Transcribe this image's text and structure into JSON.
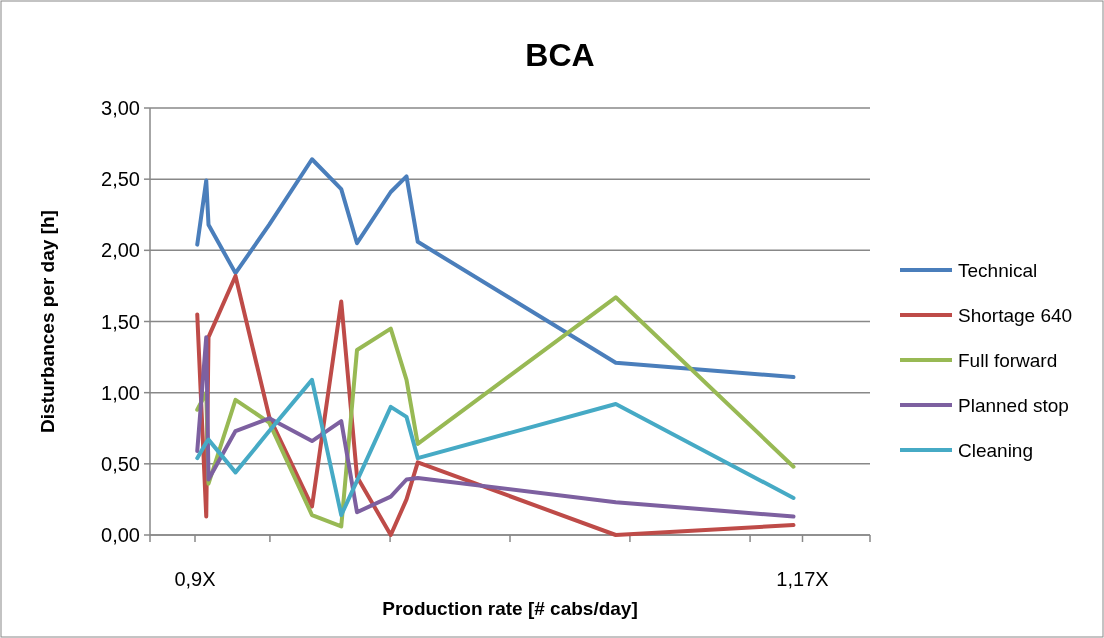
{
  "chart_data": {
    "type": "line",
    "title": "BCA",
    "xlabel": "Production rate [# cabs/day]",
    "ylabel": "Disturbances per day [h]",
    "x": [
      0.901,
      0.905,
      0.906,
      0.918,
      0.933,
      0.952,
      0.965,
      0.972,
      0.987,
      0.994,
      0.999,
      1.087,
      1.166
    ],
    "series": [
      {
        "name": "Technical",
        "color": "#4a7ebb",
        "values": [
          2.04,
          2.49,
          2.18,
          1.84,
          2.18,
          2.64,
          2.43,
          2.05,
          2.41,
          2.52,
          2.06,
          1.21,
          1.11
        ]
      },
      {
        "name": "Shortage 640",
        "color": "#be4b48",
        "values": [
          1.55,
          0.13,
          1.39,
          1.82,
          0.83,
          0.2,
          1.64,
          0.41,
          0,
          0.25,
          0.51,
          0,
          0.07
        ]
      },
      {
        "name": "Full forward",
        "color": "#98b954",
        "values": [
          0.88,
          1.0,
          0.36,
          0.95,
          0.79,
          0.14,
          0.06,
          1.3,
          1.45,
          1.09,
          0.64,
          1.67,
          0.48
        ]
      },
      {
        "name": "Planned stop",
        "color": "#7d60a0",
        "values": [
          0.59,
          1.39,
          0.39,
          0.73,
          0.82,
          0.66,
          0.8,
          0.16,
          0.27,
          0.39,
          0.4,
          0.23,
          0.13
        ]
      },
      {
        "name": "Cleaning",
        "color": "#46aac5",
        "values": [
          0.54,
          0.65,
          0.67,
          0.44,
          0.73,
          1.09,
          0.14,
          0.38,
          0.9,
          0.83,
          0.54,
          0.92,
          0.26
        ]
      }
    ],
    "xlim": [
      0.88,
      1.2
    ],
    "xticks": [
      {
        "value": 0.88,
        "label": null
      },
      {
        "value": 0.9,
        "label": "0,9X"
      },
      {
        "value": 0.9333,
        "label": null
      },
      {
        "value": 0.9867,
        "label": null
      },
      {
        "value": 1.04,
        "label": null
      },
      {
        "value": 1.0933,
        "label": null
      },
      {
        "value": 1.1467,
        "label": null
      },
      {
        "value": 1.17,
        "label": "1,17X"
      },
      {
        "value": 1.2,
        "label": null
      }
    ],
    "ylim": [
      0,
      3
    ],
    "yticks": [
      {
        "value": 0,
        "label": "0,00"
      },
      {
        "value": 0.5,
        "label": "0,50"
      },
      {
        "value": 1,
        "label": "1,00"
      },
      {
        "value": 1.5,
        "label": "1,50"
      },
      {
        "value": 2,
        "label": "2,00"
      },
      {
        "value": 2.5,
        "label": "2,50"
      },
      {
        "value": 3,
        "label": "3,00"
      }
    ],
    "grid": "y",
    "legend": "right",
    "marker": "none",
    "line_style": "solid"
  }
}
